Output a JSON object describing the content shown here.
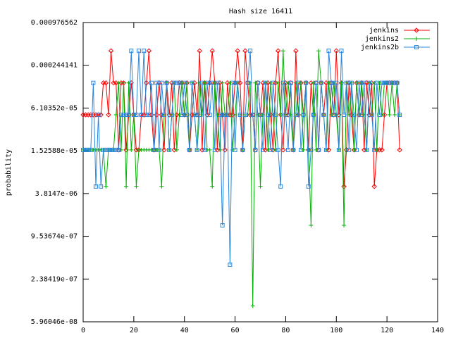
{
  "chart_data": {
    "type": "line",
    "title": "Hash size 16411",
    "y_label": "probability",
    "log_y": true,
    "x": [
      0,
      1,
      2,
      3,
      4,
      5,
      6,
      7,
      8,
      9,
      10,
      11,
      12,
      13,
      14,
      15,
      16,
      17,
      18,
      19,
      20,
      21,
      22,
      23,
      24,
      25,
      26,
      27,
      28,
      29,
      30,
      31,
      32,
      33,
      34,
      35,
      36,
      37,
      38,
      39,
      40,
      41,
      42,
      43,
      44,
      45,
      46,
      47,
      48,
      49,
      50,
      51,
      52,
      53,
      54,
      55,
      56,
      57,
      58,
      59,
      60,
      61,
      62,
      63,
      64,
      65,
      66,
      67,
      68,
      69,
      70,
      71,
      72,
      73,
      74,
      75,
      76,
      77,
      78,
      79,
      80,
      81,
      82,
      83,
      84,
      85,
      86,
      87,
      88,
      89,
      90,
      91,
      92,
      93,
      94,
      95,
      96,
      97,
      98,
      99,
      100,
      101,
      102,
      103,
      104,
      105,
      106,
      107,
      108,
      109,
      110,
      111,
      112,
      113,
      114,
      115,
      116,
      117,
      118,
      119,
      120,
      121,
      122,
      123,
      124,
      125
    ],
    "xlim": [
      0,
      140
    ],
    "xticks": [
      0,
      20,
      40,
      60,
      80,
      100,
      120,
      140
    ],
    "ylim": [
      5.96046e-08,
      0.000976562
    ],
    "yticks": [
      {
        "value": 5.96046e-08,
        "label": "5.96046e-08"
      },
      {
        "value": 2.38419e-07,
        "label": "2.38419e-07"
      },
      {
        "value": 9.53674e-07,
        "label": "9.53674e-07"
      },
      {
        "value": 3.8147e-06,
        "label": "3.8147e-06"
      },
      {
        "value": 1.52588e-05,
        "label": "1.52588e-05"
      },
      {
        "value": 6.10352e-05,
        "label": "6.10352e-05"
      },
      {
        "value": 0.000244141,
        "label": "0.000244141"
      },
      {
        "value": 0.000976562,
        "label": "0.000976562"
      }
    ],
    "legend": "top-right",
    "series": [
      {
        "name": "jenkins",
        "color": "#ff0000",
        "marker": "diamond",
        "values": [
          4.9e-05,
          4.9e-05,
          4.9e-05,
          4.9e-05,
          4.9e-05,
          4.9e-05,
          4.9e-05,
          4.9e-05,
          0.000138,
          0.000138,
          4.9e-05,
          0.00039,
          0.000138,
          0.000138,
          1.57e-05,
          0.000138,
          0.000138,
          1.57e-05,
          4.9e-05,
          0.000138,
          4.9e-05,
          1.57e-05,
          1.57e-05,
          4.9e-05,
          4.9e-05,
          0.000138,
          0.00039,
          4.9e-05,
          1.57e-05,
          4.9e-05,
          0.000138,
          4.9e-05,
          1.57e-05,
          0.000138,
          4.9e-05,
          0.000138,
          1.57e-05,
          4.9e-05,
          0.000138,
          0.000138,
          4.9e-05,
          0.000138,
          1.57e-05,
          4.9e-05,
          0.000138,
          4.9e-05,
          0.00039,
          1.57e-05,
          0.000138,
          4.9e-05,
          0.000138,
          0.00039,
          0.000138,
          1.57e-05,
          0.000138,
          4.9e-05,
          1.57e-05,
          0.000138,
          4.9e-05,
          4.9e-05,
          0.000138,
          0.00039,
          0.000138,
          1.57e-05,
          0.00039,
          0.000138,
          4.9e-05,
          4.9e-05,
          1.57e-05,
          0.000138,
          4.9e-05,
          0.000138,
          1.57e-05,
          0.000138,
          4.9e-05,
          1.57e-05,
          0.000138,
          0.00039,
          4.9e-05,
          1.57e-05,
          0.000138,
          4.9e-05,
          0.000138,
          1.57e-05,
          0.00039,
          4.9e-05,
          0.000138,
          4.9e-05,
          0.000138,
          1.57e-05,
          0.000138,
          4.9e-05,
          0.000138,
          1.57e-05,
          0.000138,
          4.9e-05,
          0.000138,
          1.57e-05,
          0.000138,
          4.9e-05,
          0.00039,
          4.9e-05,
          0.000138,
          4.8e-06,
          1.57e-05,
          0.000138,
          4.9e-05,
          1.57e-05,
          0.000138,
          4.9e-05,
          0.000138,
          1.57e-05,
          0.000138,
          4.9e-05,
          0.000138,
          4.8e-06,
          1.57e-05,
          1.57e-05,
          1.57e-05,
          4.9e-05,
          0.000138,
          0.000138,
          0.000138,
          0.000138,
          0.000138,
          1.57e-05
        ]
      },
      {
        "name": "jenkins2",
        "color": "#00b000",
        "marker": "plus",
        "values": [
          1.57e-05,
          1.57e-05,
          1.57e-05,
          1.57e-05,
          1.57e-05,
          1.57e-05,
          1.57e-05,
          1.57e-05,
          1.57e-05,
          4.8e-06,
          1.57e-05,
          1.57e-05,
          1.57e-05,
          4.9e-05,
          0.000138,
          1.57e-05,
          0.000138,
          4.8e-06,
          0.000138,
          1.57e-05,
          4.9e-05,
          4.8e-06,
          1.57e-05,
          1.57e-05,
          1.57e-05,
          1.57e-05,
          1.57e-05,
          1.57e-05,
          1.57e-05,
          1.57e-05,
          1.57e-05,
          4.8e-06,
          4.9e-05,
          0.000138,
          1.57e-05,
          4.9e-05,
          0.000138,
          1.57e-05,
          4.9e-05,
          0.000138,
          4.9e-05,
          0.000138,
          1.57e-05,
          0.000138,
          4.9e-05,
          1.57e-05,
          0.000138,
          4.9e-05,
          0.000138,
          1.57e-05,
          1.57e-05,
          4.8e-06,
          0.000138,
          4.9e-05,
          1.57e-05,
          0.000138,
          4.9e-05,
          4.9e-05,
          0.000138,
          1.57e-05,
          4.9e-05,
          0.000138,
          4.9e-05,
          1.57e-05,
          4.9e-05,
          4.9e-05,
          0.000138,
          1e-07,
          0.000138,
          4.9e-05,
          4.8e-06,
          4.9e-05,
          0.000138,
          1.57e-05,
          0.000138,
          4.9e-05,
          1.57e-05,
          0.000138,
          4.9e-05,
          0.00039,
          4.9e-05,
          0.000138,
          4.9e-05,
          1.57e-05,
          0.000138,
          4.9e-05,
          0.000138,
          1.57e-05,
          0.000138,
          1.57e-05,
          1.36e-06,
          0.000138,
          1.57e-05,
          0.00039,
          0.000138,
          4.9e-05,
          1.57e-05,
          0.000138,
          4.9e-05,
          0.000138,
          4.9e-05,
          1.57e-05,
          0.000138,
          1.36e-06,
          0.000138,
          4.9e-05,
          0.000138,
          1.57e-05,
          0.000138,
          4.9e-05,
          0.000138,
          4.9e-05,
          1.57e-05,
          0.000138,
          4.9e-05,
          0.000138,
          1.57e-05,
          0.000138,
          4.9e-05,
          0.000138,
          0.000138,
          4.9e-05,
          0.000138,
          4.9e-05,
          0.000138,
          4.9e-05
        ]
      },
      {
        "name": "jenkins2b",
        "color": "#2a86dc",
        "marker": "square",
        "values": [
          1.57e-05,
          1.57e-05,
          1.57e-05,
          1.57e-05,
          0.000138,
          4.8e-06,
          4.9e-05,
          4.8e-06,
          1.57e-05,
          1.57e-05,
          1.57e-05,
          1.57e-05,
          1.57e-05,
          1.57e-05,
          1.57e-05,
          4.9e-05,
          4.9e-05,
          4.9e-05,
          4.9e-05,
          0.00039,
          4.9e-05,
          4.9e-05,
          0.00039,
          4.9e-05,
          0.00039,
          4.9e-05,
          4.9e-05,
          0.000138,
          1.57e-05,
          0.000138,
          1.57e-05,
          0.000138,
          4.9e-05,
          0.000138,
          1.57e-05,
          4.9e-05,
          0.000138,
          0.000138,
          0.000138,
          4.9e-05,
          0.000138,
          4.9e-05,
          1.57e-05,
          0.000138,
          4.9e-05,
          1.57e-05,
          4.9e-05,
          0.000138,
          1.57e-05,
          0.000138,
          4.9e-05,
          0.000138,
          1.57e-05,
          0.000138,
          4.9e-05,
          1.36e-06,
          4.9e-05,
          4.9e-05,
          3.8e-07,
          0.000138,
          1.57e-05,
          0.000138,
          4.9e-05,
          1.57e-05,
          4.9e-05,
          0.000138,
          0.00039,
          4.9e-05,
          1.57e-05,
          0.000138,
          4.9e-05,
          1.57e-05,
          0.000138,
          4.9e-05,
          1.57e-05,
          0.000138,
          4.9e-05,
          1.57e-05,
          4.8e-06,
          0.000138,
          4.9e-05,
          1.57e-05,
          0.000138,
          1.57e-05,
          4.9e-05,
          0.000138,
          1.57e-05,
          4.9e-05,
          0.000138,
          4.8e-06,
          1.57e-05,
          4.9e-05,
          0.000138,
          1.57e-05,
          0.000138,
          4.9e-05,
          1.57e-05,
          0.00039,
          0.000138,
          4.9e-05,
          0.000138,
          1.57e-05,
          0.00039,
          4.9e-05,
          0.000138,
          1.57e-05,
          0.000138,
          4.9e-05,
          1.57e-05,
          0.000138,
          4.9e-05,
          0.000138,
          1.57e-05,
          0.000138,
          4.9e-05,
          1.57e-05,
          0.000138,
          4.9e-05,
          0.000138,
          0.000138,
          0.000138,
          0.000138,
          0.000138,
          0.000138,
          0.000138,
          4.9e-05
        ]
      }
    ]
  }
}
